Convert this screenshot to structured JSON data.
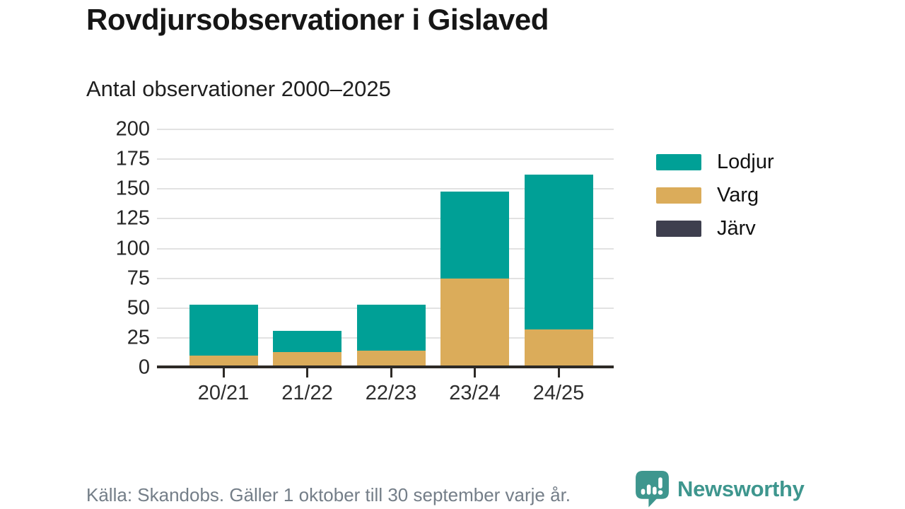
{
  "header": {
    "title": "Rovdjursobservationer i Gislaved",
    "subtitle": "Antal observationer 2000–2025"
  },
  "chart_data": {
    "type": "bar",
    "subtype": "stacked",
    "categories": [
      "20/21",
      "21/22",
      "22/23",
      "23/24",
      "24/25"
    ],
    "series": [
      {
        "name": "Lodjur",
        "color": "#00a096",
        "values": [
          43,
          18,
          39,
          73,
          130
        ]
      },
      {
        "name": "Varg",
        "color": "#dbac5a",
        "values": [
          10,
          13,
          14,
          75,
          32
        ]
      },
      {
        "name": "Järv",
        "color": "#3e3f4e",
        "values": [
          0,
          0,
          0,
          0,
          0
        ]
      }
    ],
    "stack_order_bottom_up": [
      "Varg",
      "Lodjur",
      "Järv"
    ],
    "totals": [
      53,
      31,
      53,
      148,
      162
    ],
    "title": "Antal observationer 2000–2025",
    "xlabel": "",
    "ylabel": "",
    "ylim": [
      0,
      200
    ],
    "yticks": [
      0,
      25,
      50,
      75,
      100,
      125,
      150,
      175,
      200
    ],
    "grid": "horizontal",
    "legend_position": "right"
  },
  "footer": {
    "source": "Källa: Skandobs. Gäller 1 oktober till 30 september varje år.",
    "logo_text": "Newsworthy"
  },
  "colors": {
    "lodjur": "#00a096",
    "varg": "#dbac5a",
    "jarv": "#3e3f4e",
    "gridline": "#e2e2e2",
    "axis": "#2d2a26",
    "logo_teal": "#3e968e",
    "footer_gray": "#747e88"
  }
}
